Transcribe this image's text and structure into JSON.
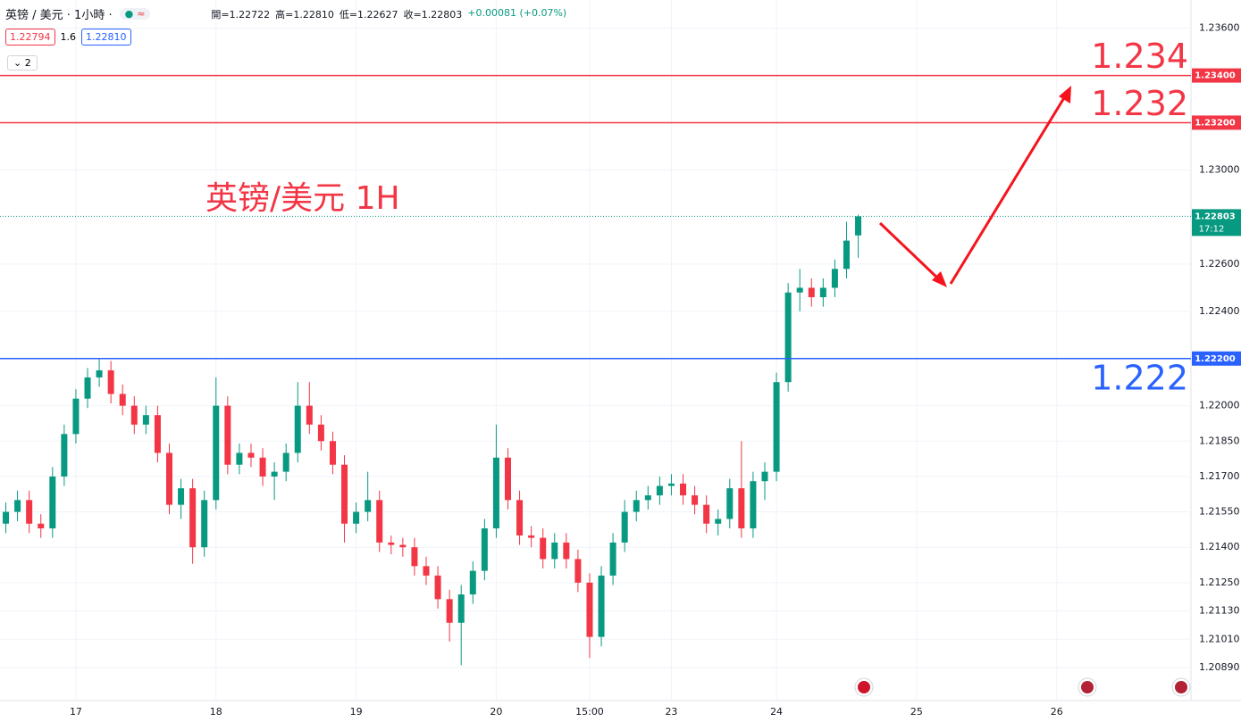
{
  "chart_data": {
    "type": "candlestick",
    "header": {
      "symbol": "英镑 / 美元 · 1小時 ·",
      "ohlc": [
        "開=1.22722",
        "高=1.22810",
        "低=1.22627",
        "收=1.22803"
      ],
      "change": "+0.00081 (+0.07%)",
      "bid": "1.22794",
      "spread": "1.6",
      "ask": "1.22810",
      "indicators": "2"
    },
    "annotation": "英镑/美元 1H",
    "up_color": "#089981",
    "down_color": "#f23645",
    "categories": [
      null,
      null,
      null,
      null,
      null,
      null,
      "17",
      null,
      null,
      null,
      null,
      null,
      null,
      null,
      null,
      null,
      null,
      null,
      "18",
      null,
      null,
      null,
      null,
      null,
      null,
      null,
      null,
      null,
      null,
      null,
      "19",
      null,
      null,
      null,
      null,
      null,
      null,
      null,
      null,
      null,
      null,
      null,
      "20",
      null,
      null,
      null,
      null,
      null,
      null,
      null,
      "15:00",
      null,
      null,
      null,
      null,
      null,
      null,
      "23",
      null,
      null,
      null,
      null,
      null,
      null,
      null,
      null,
      "24",
      null,
      null,
      null,
      null,
      null,
      null,
      null,
      null,
      null,
      null,
      null,
      "25",
      null,
      null,
      null,
      null,
      null,
      null,
      null,
      null,
      null,
      null,
      null,
      "26",
      null,
      null,
      null,
      null,
      null,
      null,
      null,
      null,
      null,
      null,
      null
    ],
    "open": [
      1.215,
      1.2155,
      1.216,
      1.215,
      1.2148,
      1.217,
      1.2188,
      1.2203,
      1.2212,
      1.2215,
      1.2205,
      1.22,
      1.2192,
      1.2196,
      1.218,
      1.2158,
      1.2165,
      1.214,
      1.216,
      1.22,
      1.2175,
      1.218,
      1.2178,
      1.217,
      1.2172,
      1.218,
      1.22,
      1.2192,
      1.2185,
      1.2175,
      1.215,
      1.2155,
      1.216,
      1.2142,
      1.2141,
      1.214,
      1.2132,
      1.2128,
      1.2118,
      1.2108,
      1.212,
      1.213,
      1.2148,
      1.2178,
      1.216,
      1.2145,
      1.2144,
      1.2135,
      1.2142,
      1.2135,
      1.2125,
      1.2102,
      1.2128,
      1.2142,
      1.2155,
      1.216,
      1.2162,
      1.2166,
      1.2167,
      1.2162,
      1.2158,
      1.215,
      1.2152,
      1.2165,
      1.2148,
      1.2168,
      1.2172,
      1.221,
      1.2248,
      1.225,
      1.2246,
      1.225,
      1.2258,
      1.22722,
      null,
      null,
      null,
      null,
      null,
      null,
      null,
      null,
      null,
      null,
      null,
      null,
      null,
      null,
      null,
      null,
      null,
      null,
      null,
      null,
      null,
      null,
      null,
      null,
      null,
      null,
      null,
      null
    ],
    "high": [
      1.2159,
      1.2164,
      1.2164,
      1.2154,
      1.2174,
      1.2192,
      1.2207,
      1.2216,
      1.222,
      1.2219,
      1.2209,
      1.2204,
      1.22,
      1.22,
      1.2184,
      1.2169,
      1.2169,
      1.2164,
      1.2212,
      1.2204,
      1.2184,
      1.2184,
      1.2182,
      1.2176,
      1.2184,
      1.221,
      1.221,
      1.2196,
      1.2189,
      1.2179,
      1.2159,
      1.2172,
      1.2164,
      1.2145,
      1.2144,
      1.2144,
      1.2136,
      1.2132,
      1.2122,
      1.2124,
      1.2134,
      1.2152,
      1.2192,
      1.2182,
      1.2164,
      1.2149,
      1.2148,
      1.2146,
      1.2146,
      1.2139,
      1.2129,
      1.2132,
      1.2146,
      1.216,
      1.2164,
      1.2166,
      1.217,
      1.2171,
      1.2171,
      1.2166,
      1.2162,
      1.2156,
      1.2169,
      1.2185,
      1.2172,
      1.2176,
      1.2214,
      1.2252,
      1.2258,
      1.2254,
      1.2254,
      1.2262,
      1.2278,
      1.2281,
      null,
      null,
      null,
      null,
      null,
      null,
      null,
      null,
      null,
      null,
      null,
      null,
      null,
      null,
      null,
      null,
      null,
      null,
      null,
      null,
      null,
      null,
      null,
      null,
      null,
      null,
      null,
      null
    ],
    "low": [
      1.2146,
      1.2151,
      1.2146,
      1.2144,
      1.2144,
      1.2166,
      1.2184,
      1.2199,
      1.2208,
      1.2201,
      1.2196,
      1.2188,
      1.2188,
      1.2176,
      1.2154,
      1.2152,
      1.2133,
      1.2136,
      1.2156,
      1.2171,
      1.2171,
      1.2174,
      1.2166,
      1.216,
      1.2168,
      1.2176,
      1.2188,
      1.2181,
      1.2171,
      1.2142,
      1.2146,
      1.2151,
      1.2138,
      1.2137,
      1.2136,
      1.2128,
      1.2124,
      1.2114,
      1.21,
      1.209,
      1.2116,
      1.2126,
      1.2144,
      1.2156,
      1.2141,
      1.214,
      1.2131,
      1.2131,
      1.2131,
      1.2121,
      1.2093,
      1.2098,
      1.2124,
      1.2138,
      1.2151,
      1.2156,
      1.2158,
      1.2162,
      1.2158,
      1.2154,
      1.2146,
      1.2145,
      1.2148,
      1.2144,
      1.2144,
      1.216,
      1.2168,
      1.2206,
      1.224,
      1.2242,
      1.2242,
      1.2246,
      1.2254,
      1.22627,
      null,
      null,
      null,
      null,
      null,
      null,
      null,
      null,
      null,
      null,
      null,
      null,
      null,
      null,
      null,
      null,
      null,
      null,
      null,
      null,
      null,
      null,
      null,
      null,
      null,
      null,
      null,
      null
    ],
    "close": [
      1.2155,
      1.216,
      1.215,
      1.2148,
      1.217,
      1.2188,
      1.2203,
      1.2212,
      1.2215,
      1.2205,
      1.22,
      1.2192,
      1.2196,
      1.218,
      1.2158,
      1.2165,
      1.214,
      1.216,
      1.22,
      1.2175,
      1.218,
      1.2178,
      1.217,
      1.2172,
      1.218,
      1.22,
      1.2192,
      1.2185,
      1.2175,
      1.215,
      1.2155,
      1.216,
      1.2142,
      1.2141,
      1.214,
      1.2132,
      1.2128,
      1.2118,
      1.2108,
      1.212,
      1.213,
      1.2148,
      1.2178,
      1.216,
      1.2145,
      1.2144,
      1.2135,
      1.2142,
      1.2135,
      1.2125,
      1.2102,
      1.2128,
      1.2142,
      1.2155,
      1.216,
      1.2162,
      1.2166,
      1.2167,
      1.2162,
      1.2158,
      1.215,
      1.2152,
      1.2165,
      1.2148,
      1.2168,
      1.2172,
      1.221,
      1.2248,
      1.225,
      1.2246,
      1.225,
      1.2258,
      1.227,
      1.22803,
      null,
      null,
      null,
      null,
      null,
      null,
      null,
      null,
      null,
      null,
      null,
      null,
      null,
      null,
      null,
      null,
      null,
      null,
      null,
      null,
      null,
      null,
      null,
      null,
      null,
      null,
      null,
      null
    ],
    "ylim": [
      1.2075,
      1.2372
    ],
    "yticks": [
      {
        "value": 1.236,
        "label": "1.23600"
      },
      {
        "value": 1.23,
        "label": "1.23000"
      },
      {
        "value": 1.226,
        "label": "1.22600"
      },
      {
        "value": 1.224,
        "label": "1.22400"
      },
      {
        "value": 1.22,
        "label": "1.22000"
      },
      {
        "value": 1.2185,
        "label": "1.21850"
      },
      {
        "value": 1.217,
        "label": "1.21700"
      },
      {
        "value": 1.2155,
        "label": "1.21550"
      },
      {
        "value": 1.214,
        "label": "1.21400"
      },
      {
        "value": 1.2125,
        "label": "1.21250"
      },
      {
        "value": 1.2113,
        "label": "1.21130"
      },
      {
        "value": 1.2101,
        "label": "1.21010"
      },
      {
        "value": 1.2089,
        "label": "1.20890"
      }
    ],
    "levels": [
      {
        "value": 1.234,
        "label": "1.23400",
        "text": "1.234",
        "color": "#f23645"
      },
      {
        "value": 1.232,
        "label": "1.23200",
        "text": "1.232",
        "color": "#f23645"
      },
      {
        "value": 1.222,
        "label": "1.22200",
        "text": "1.222",
        "color": "#2962ff"
      }
    ],
    "last_price": {
      "value": 1.22803,
      "label": "1.22803",
      "countdown": "17:12",
      "color": "#089981"
    },
    "grid": true
  }
}
